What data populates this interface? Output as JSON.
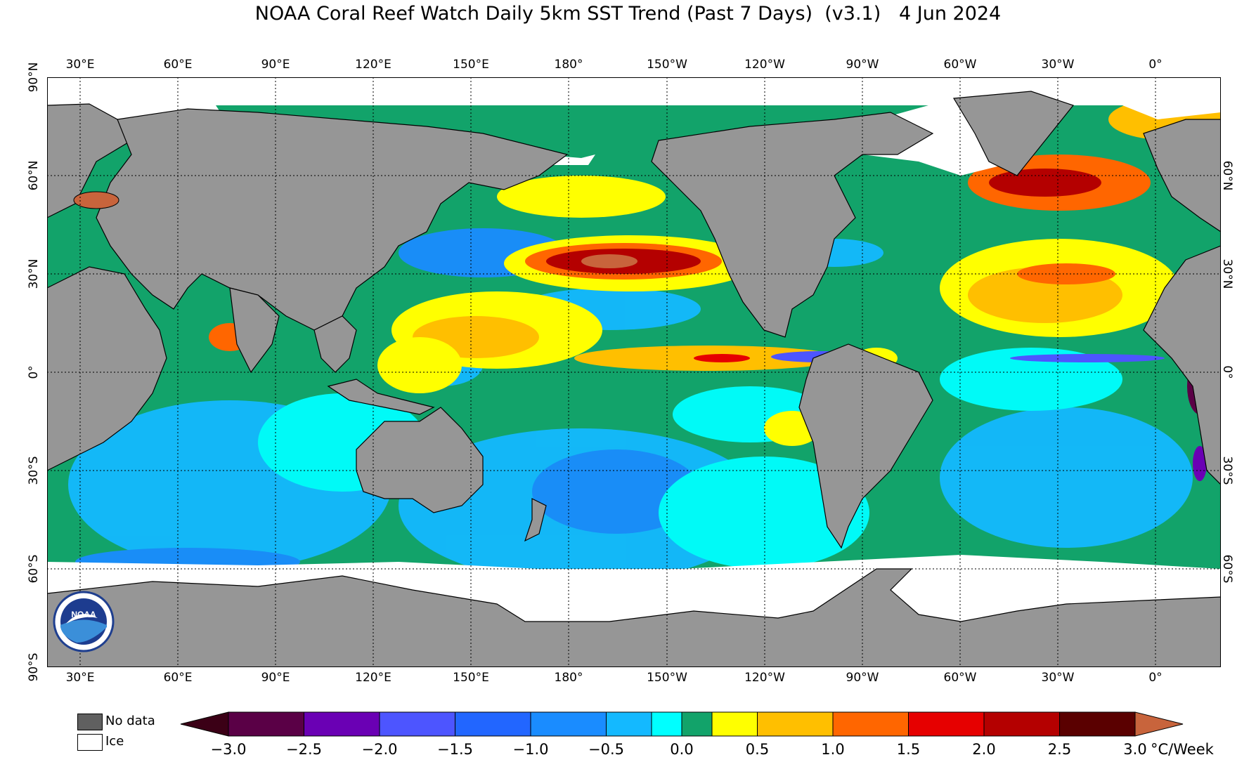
{
  "title": "NOAA Coral Reef Watch Daily 5km SST Trend (Past 7 Days)  (v3.1)   4 Jun 2024",
  "lon_labels": [
    "30°E",
    "60°E",
    "90°E",
    "120°E",
    "150°E",
    "180°",
    "150°W",
    "120°W",
    "90°W",
    "60°W",
    "30°W",
    "0°"
  ],
  "lat_labels": [
    "90°N",
    "60°N",
    "30°N",
    "0°",
    "30°S",
    "60°S",
    "90°S"
  ],
  "legend": {
    "nodata": "No data",
    "ice": "Ice"
  },
  "colors": {
    "land": "#969696",
    "ocean_base": "#12a36a",
    "ice": "#ffffff",
    "nodata": "#606060",
    "bins": [
      "#5a0046",
      "#6a00b4",
      "#4d55ff",
      "#2266ff",
      "#1a8cff",
      "#14b9ff",
      "#00ffff",
      "#12a36a",
      "#12a36a",
      "#ffff00",
      "#ffbf00",
      "#ff6600",
      "#e60000",
      "#b40000",
      "#870000",
      "#5a0000"
    ],
    "under": "#3b0016",
    "over": "#c8643c"
  },
  "colorbar": {
    "ticks": [
      "−3.0",
      "−2.5",
      "−2.0",
      "−1.5",
      "−1.0",
      "−0.5",
      "0.0",
      "0.5",
      "1.0",
      "1.5",
      "2.0",
      "2.5",
      "3.0"
    ],
    "unit": "°C/Week"
  },
  "logo": {
    "text": "NOAA",
    "ring_text": "NATIONAL OCEANIC AND ATMOSPHERIC ADMINISTRATION · U.S. DEPARTMENT OF COMMERCE"
  }
}
